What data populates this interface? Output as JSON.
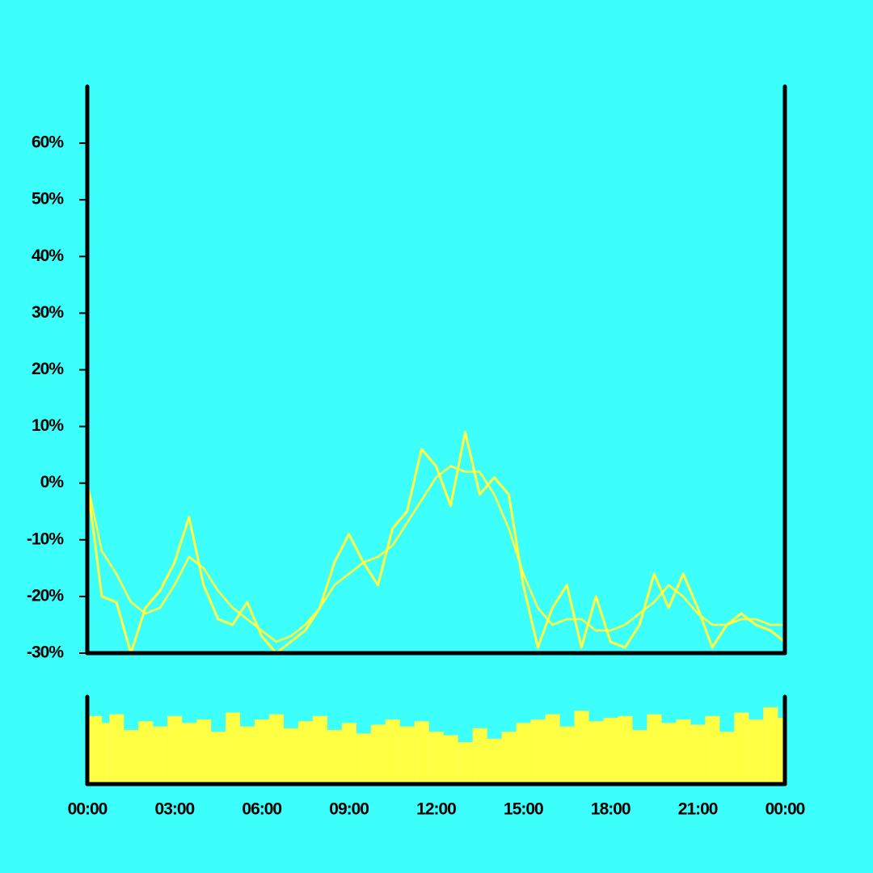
{
  "chart_data": {
    "type": "line",
    "x": [
      0,
      0.5,
      1,
      1.5,
      2,
      2.5,
      3,
      3.5,
      4,
      4.5,
      5,
      5.5,
      6,
      6.5,
      7,
      7.5,
      8,
      8.5,
      9,
      9.5,
      10,
      10.5,
      11,
      11.5,
      12,
      12.5,
      13,
      13.5,
      14,
      14.5,
      15,
      15.5,
      16,
      16.5,
      17,
      17.5,
      18,
      18.5,
      19,
      19.5,
      20,
      20.5,
      21,
      21.5,
      22,
      22.5,
      23,
      23.5,
      24
    ],
    "series": [
      {
        "color": "#ffff44",
        "values": [
          0,
          -20,
          -21,
          -30,
          -22,
          -19,
          -14,
          -6,
          -18,
          -24,
          -25,
          -21,
          -27,
          -30,
          -28,
          -26,
          -22,
          -14,
          -9,
          -14,
          -18,
          -8,
          -5,
          6,
          3,
          -4,
          9,
          -2,
          1,
          -2,
          -18,
          -29,
          -22,
          -18,
          -29,
          -20,
          -28,
          -29,
          -25,
          -16,
          -22,
          -16,
          -22,
          -29,
          -25,
          -23,
          -25,
          -26,
          -28
        ]
      },
      {
        "color": "#ffff44",
        "values": [
          0,
          -12,
          -16,
          -21,
          -23,
          -22,
          -18,
          -13,
          -15,
          -19,
          -22,
          -24,
          -26,
          -28,
          -27,
          -25,
          -22,
          -18,
          -16,
          -14,
          -13,
          -11,
          -7,
          -3,
          1,
          3,
          2,
          2,
          -2,
          -8,
          -16,
          -22,
          -25,
          -24,
          -24,
          -26,
          -26,
          -25,
          -23,
          -21,
          -18,
          -20,
          -23,
          -25,
          -25,
          -24,
          -24,
          -25,
          -25
        ]
      }
    ],
    "volume": {
      "color": "#ffff44",
      "ylim": [
        0,
        100
      ],
      "values": [
        78,
        70,
        80,
        62,
        72,
        66,
        78,
        70,
        74,
        60,
        82,
        66,
        74,
        80,
        64,
        72,
        78,
        62,
        70,
        58,
        68,
        74,
        66,
        72,
        60,
        56,
        48,
        64,
        52,
        60,
        70,
        74,
        80,
        66,
        84,
        72,
        76,
        78,
        62,
        80,
        70,
        74,
        68,
        78,
        60,
        82,
        74,
        88,
        76
      ]
    },
    "xlim": [
      0,
      24
    ],
    "xticks": [
      {
        "value": 0,
        "label": "00:00"
      },
      {
        "value": 3,
        "label": "03:00"
      },
      {
        "value": 6,
        "label": "06:00"
      },
      {
        "value": 9,
        "label": "09:00"
      },
      {
        "value": 12,
        "label": "12:00"
      },
      {
        "value": 15,
        "label": "15:00"
      },
      {
        "value": 18,
        "label": "18:00"
      },
      {
        "value": 21,
        "label": "21:00"
      },
      {
        "value": 24,
        "label": "00:00"
      }
    ],
    "ylim": [
      -30,
      70
    ],
    "yticks": [
      {
        "value": -30,
        "label": "-30%"
      },
      {
        "value": -20,
        "label": "-20%"
      },
      {
        "value": -10,
        "label": "-10%"
      },
      {
        "value": 0,
        "label": "0%"
      },
      {
        "value": 10,
        "label": "10%"
      },
      {
        "value": 20,
        "label": "20%"
      },
      {
        "value": 30,
        "label": "30%"
      },
      {
        "value": 40,
        "label": "40%"
      },
      {
        "value": 50,
        "label": "50%"
      },
      {
        "value": 60,
        "label": "60%"
      }
    ]
  }
}
